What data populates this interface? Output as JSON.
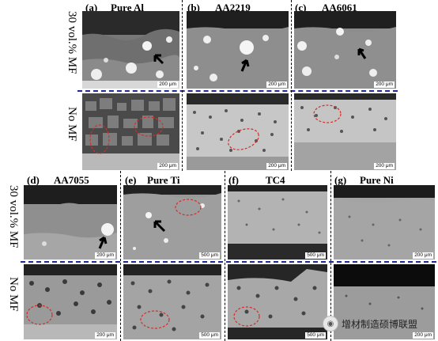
{
  "panels": [
    {
      "id": "a",
      "label": "(a)",
      "title": "Pure Al"
    },
    {
      "id": "b",
      "label": "(b)",
      "title": "AA2219"
    },
    {
      "id": "c",
      "label": "(c)",
      "title": "AA6061"
    },
    {
      "id": "d",
      "label": "(d)",
      "title": "AA7055"
    },
    {
      "id": "e",
      "label": "(e)",
      "title": "Pure Ti"
    },
    {
      "id": "f",
      "label": "(f)",
      "title": "TC4"
    },
    {
      "id": "g",
      "label": "(g)",
      "title": "Pure Ni"
    }
  ],
  "row_labels": {
    "with_mf": "30 vol.% MF",
    "no_mf": "No MF"
  },
  "scale_bars": {
    "a_top": "200 μm",
    "a_bot": "200 μm",
    "b_top": "200 μm",
    "b_bot": "200 μm",
    "c_top": "200 μm",
    "c_bot": "200 μm",
    "d_top": "200 μm",
    "d_bot": "200 μm",
    "e_top": "500 μm",
    "e_bot": "500 μm",
    "f_top": "500 μm",
    "f_bot": "500 μm",
    "g_top": "200 μm",
    "g_bot": "200 μm"
  },
  "watermark": "增材制造硕博联盟",
  "colors": {
    "divider": "#1c2d8f",
    "ellipse": "#d0302a",
    "arrow": "#000000"
  }
}
